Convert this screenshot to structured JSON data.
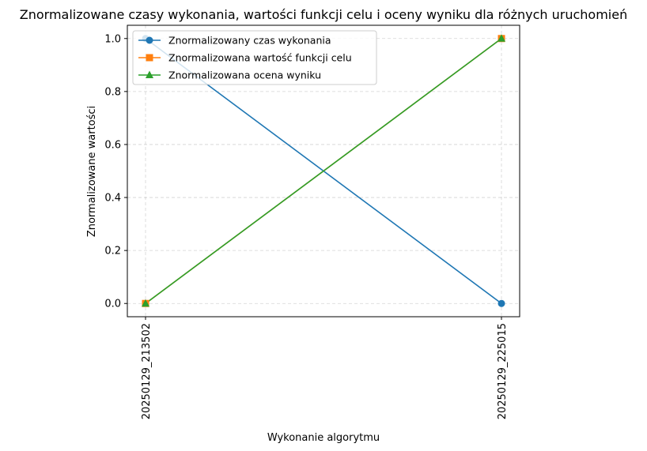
{
  "chart_data": {
    "type": "line",
    "title": "Znormalizowane czasy wykonania, wartości funkcji celu i oceny wyniku dla różnych uruchomień",
    "xlabel": "Wykonanie algorytmu",
    "ylabel": "Znormalizowane wartości",
    "categories": [
      "20250129_213502",
      "20250129_225015"
    ],
    "ylim": [
      -0.05,
      1.05
    ],
    "yticks": [
      0.0,
      0.2,
      0.4,
      0.6,
      0.8,
      1.0
    ],
    "ytick_labels": [
      "0.0",
      "0.2",
      "0.4",
      "0.6",
      "0.8",
      "1.0"
    ],
    "grid": true,
    "legend_position": "top-left",
    "series": [
      {
        "name": "Znormalizowany czas wykonania",
        "values": [
          1.0,
          0.0
        ],
        "color": "#1f77b4",
        "marker": "circle"
      },
      {
        "name": "Znormalizowana wartość funkcji celu",
        "values": [
          0.0,
          1.0
        ],
        "color": "#ff7f0e",
        "marker": "square"
      },
      {
        "name": "Znormalizowana ocena wyniku",
        "values": [
          0.0,
          1.0
        ],
        "color": "#2ca02c",
        "marker": "triangle"
      }
    ]
  }
}
